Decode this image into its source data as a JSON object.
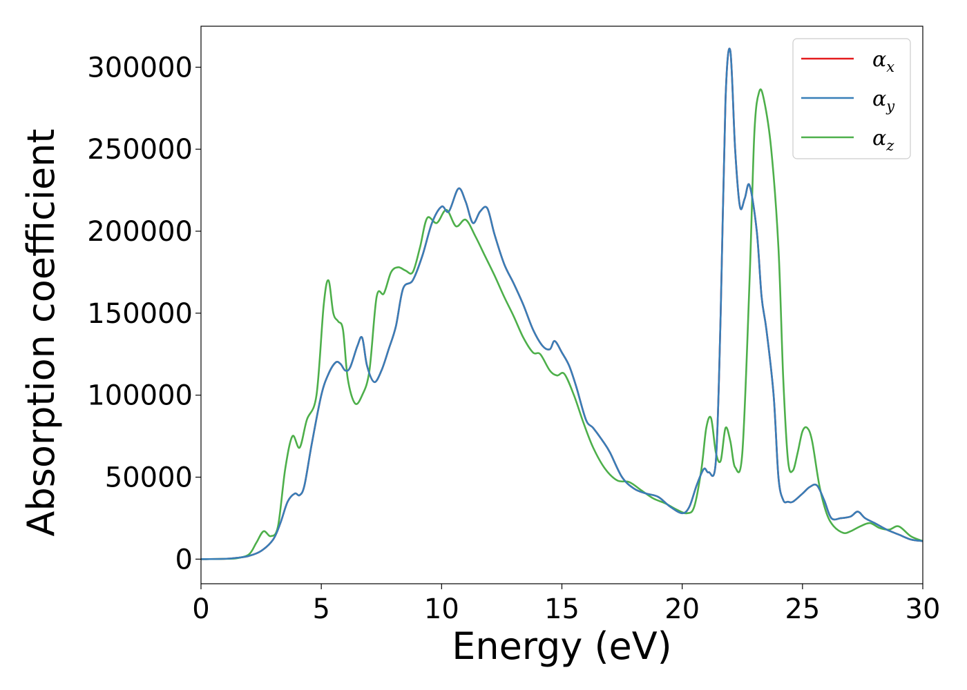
{
  "chart_data": {
    "type": "line",
    "xlabel": "Energy (eV)",
    "ylabel": "Absorption coefficient",
    "xlim": [
      0,
      30
    ],
    "ylim": [
      -15000,
      325000
    ],
    "xticks": [
      0,
      5,
      10,
      15,
      20,
      25,
      30
    ],
    "xtick_labels": [
      "0",
      "5",
      "10",
      "15",
      "20",
      "25",
      "30"
    ],
    "yticks": [
      0,
      50000,
      100000,
      150000,
      200000,
      250000,
      300000
    ],
    "ytick_labels": [
      "0",
      "50000",
      "100000",
      "150000",
      "200000",
      "250000",
      "300000"
    ],
    "grid": false,
    "legend_position": "top-right",
    "series": [
      {
        "name": "α",
        "subscript": "x",
        "color": "#e41a1c",
        "x": [
          0,
          1,
          1.5,
          2,
          2.5,
          3,
          3.3,
          3.6,
          3.9,
          4.1,
          4.3,
          4.6,
          5,
          5.3,
          5.6,
          5.8,
          6,
          6.2,
          6.5,
          6.7,
          6.9,
          7.2,
          7.5,
          7.8,
          8.1,
          8.4,
          8.8,
          9.2,
          9.6,
          10,
          10.3,
          10.7,
          11,
          11.3,
          11.6,
          11.9,
          12.2,
          12.6,
          13,
          13.4,
          13.8,
          14.2,
          14.5,
          14.7,
          15,
          15.3,
          15.6,
          16,
          16.3,
          16.7,
          17,
          17.5,
          18,
          18.5,
          19,
          19.5,
          20,
          20.3,
          20.6,
          20.9,
          21.1,
          21.4,
          21.6,
          21.8,
          22,
          22.2,
          22.4,
          22.6,
          22.8,
          23.1,
          23.3,
          23.5,
          23.8,
          24,
          24.2,
          24.4,
          24.6,
          25,
          25.3,
          25.6,
          25.9,
          26.2,
          26.6,
          27,
          27.3,
          27.6,
          28,
          28.5,
          29,
          29.5,
          30
        ],
        "y": [
          0,
          200,
          800,
          2000,
          5000,
          12000,
          22000,
          35000,
          40000,
          39000,
          45000,
          70000,
          100000,
          113000,
          120000,
          119000,
          115000,
          117000,
          130000,
          135000,
          118000,
          108000,
          115000,
          128000,
          142000,
          165000,
          170000,
          185000,
          205000,
          215000,
          212000,
          226000,
          218000,
          205000,
          212000,
          214000,
          198000,
          180000,
          168000,
          155000,
          140000,
          130000,
          128000,
          133000,
          126000,
          118000,
          105000,
          85000,
          80000,
          72000,
          65000,
          50000,
          43000,
          40000,
          38000,
          32000,
          28000,
          32000,
          45000,
          55000,
          53000,
          60000,
          150000,
          280000,
          310000,
          250000,
          215000,
          220000,
          228000,
          200000,
          160000,
          140000,
          100000,
          50000,
          36000,
          35000,
          35000,
          40000,
          44000,
          45000,
          36000,
          25000,
          25000,
          26000,
          29000,
          25000,
          22000,
          18000,
          15000,
          12000,
          11000
        ]
      },
      {
        "name": "α",
        "subscript": "y",
        "color": "#377eb8",
        "x": [
          0,
          1,
          1.5,
          2,
          2.5,
          3,
          3.3,
          3.6,
          3.9,
          4.1,
          4.3,
          4.6,
          5,
          5.3,
          5.6,
          5.8,
          6,
          6.2,
          6.5,
          6.7,
          6.9,
          7.2,
          7.5,
          7.8,
          8.1,
          8.4,
          8.8,
          9.2,
          9.6,
          10,
          10.3,
          10.7,
          11,
          11.3,
          11.6,
          11.9,
          12.2,
          12.6,
          13,
          13.4,
          13.8,
          14.2,
          14.5,
          14.7,
          15,
          15.3,
          15.6,
          16,
          16.3,
          16.7,
          17,
          17.5,
          18,
          18.5,
          19,
          19.5,
          20,
          20.3,
          20.6,
          20.9,
          21.1,
          21.4,
          21.6,
          21.8,
          22,
          22.2,
          22.4,
          22.6,
          22.8,
          23.1,
          23.3,
          23.5,
          23.8,
          24,
          24.2,
          24.4,
          24.6,
          25,
          25.3,
          25.6,
          25.9,
          26.2,
          26.6,
          27,
          27.3,
          27.6,
          28,
          28.5,
          29,
          29.5,
          30
        ],
        "y": [
          0,
          200,
          800,
          2000,
          5000,
          12000,
          22000,
          35000,
          40000,
          39000,
          45000,
          70000,
          100000,
          113000,
          120000,
          119000,
          115000,
          117000,
          130000,
          135000,
          118000,
          108000,
          115000,
          128000,
          142000,
          165000,
          170000,
          185000,
          205000,
          215000,
          212000,
          226000,
          218000,
          205000,
          212000,
          214000,
          198000,
          180000,
          168000,
          155000,
          140000,
          130000,
          128000,
          133000,
          126000,
          118000,
          105000,
          85000,
          80000,
          72000,
          65000,
          50000,
          43000,
          40000,
          38000,
          32000,
          28000,
          32000,
          45000,
          55000,
          53000,
          60000,
          150000,
          280000,
          310000,
          250000,
          215000,
          220000,
          228000,
          200000,
          160000,
          140000,
          100000,
          50000,
          36000,
          35000,
          35000,
          40000,
          44000,
          45000,
          36000,
          25000,
          25000,
          26000,
          29000,
          25000,
          22000,
          18000,
          15000,
          12000,
          11000
        ]
      },
      {
        "name": "α",
        "subscript": "z",
        "color": "#4daf4a",
        "x": [
          0,
          1,
          1.5,
          2,
          2.3,
          2.6,
          2.9,
          3.2,
          3.5,
          3.8,
          4.1,
          4.4,
          4.8,
          5.1,
          5.3,
          5.5,
          5.7,
          5.9,
          6.1,
          6.4,
          6.7,
          7,
          7.3,
          7.6,
          7.9,
          8.2,
          8.5,
          8.8,
          9.1,
          9.4,
          9.8,
          10.2,
          10.6,
          11,
          11.4,
          11.8,
          12.2,
          12.6,
          13,
          13.4,
          13.8,
          14.1,
          14.5,
          14.8,
          15.1,
          15.5,
          15.9,
          16.3,
          16.8,
          17.3,
          17.8,
          18.3,
          18.8,
          19.3,
          19.8,
          20.2,
          20.5,
          20.8,
          21,
          21.2,
          21.4,
          21.6,
          21.8,
          22,
          22.2,
          22.5,
          22.8,
          23,
          23.2,
          23.4,
          23.7,
          24,
          24.2,
          24.4,
          24.6,
          24.8,
          25,
          25.2,
          25.4,
          25.7,
          26,
          26.3,
          26.7,
          27,
          27.4,
          27.8,
          28.2,
          28.6,
          29,
          29.5,
          30
        ],
        "y": [
          0,
          200,
          600,
          3000,
          10000,
          17000,
          14000,
          20000,
          55000,
          75000,
          68000,
          85000,
          100000,
          155000,
          170000,
          150000,
          145000,
          140000,
          110000,
          95000,
          100000,
          115000,
          160000,
          162000,
          175000,
          178000,
          176000,
          175000,
          190000,
          208000,
          205000,
          213000,
          203000,
          207000,
          197000,
          185000,
          173000,
          160000,
          148000,
          135000,
          126000,
          125000,
          115000,
          112000,
          113000,
          100000,
          83000,
          68000,
          55000,
          48000,
          47000,
          42000,
          37000,
          34000,
          30000,
          28000,
          32000,
          55000,
          80000,
          86000,
          65000,
          60000,
          80000,
          72000,
          56000,
          65000,
          170000,
          260000,
          285000,
          280000,
          250000,
          190000,
          110000,
          60000,
          54000,
          65000,
          78000,
          80000,
          72000,
          45000,
          28000,
          20000,
          16000,
          17000,
          20000,
          22000,
          19000,
          18000,
          20000,
          14000,
          11000
        ]
      }
    ]
  }
}
